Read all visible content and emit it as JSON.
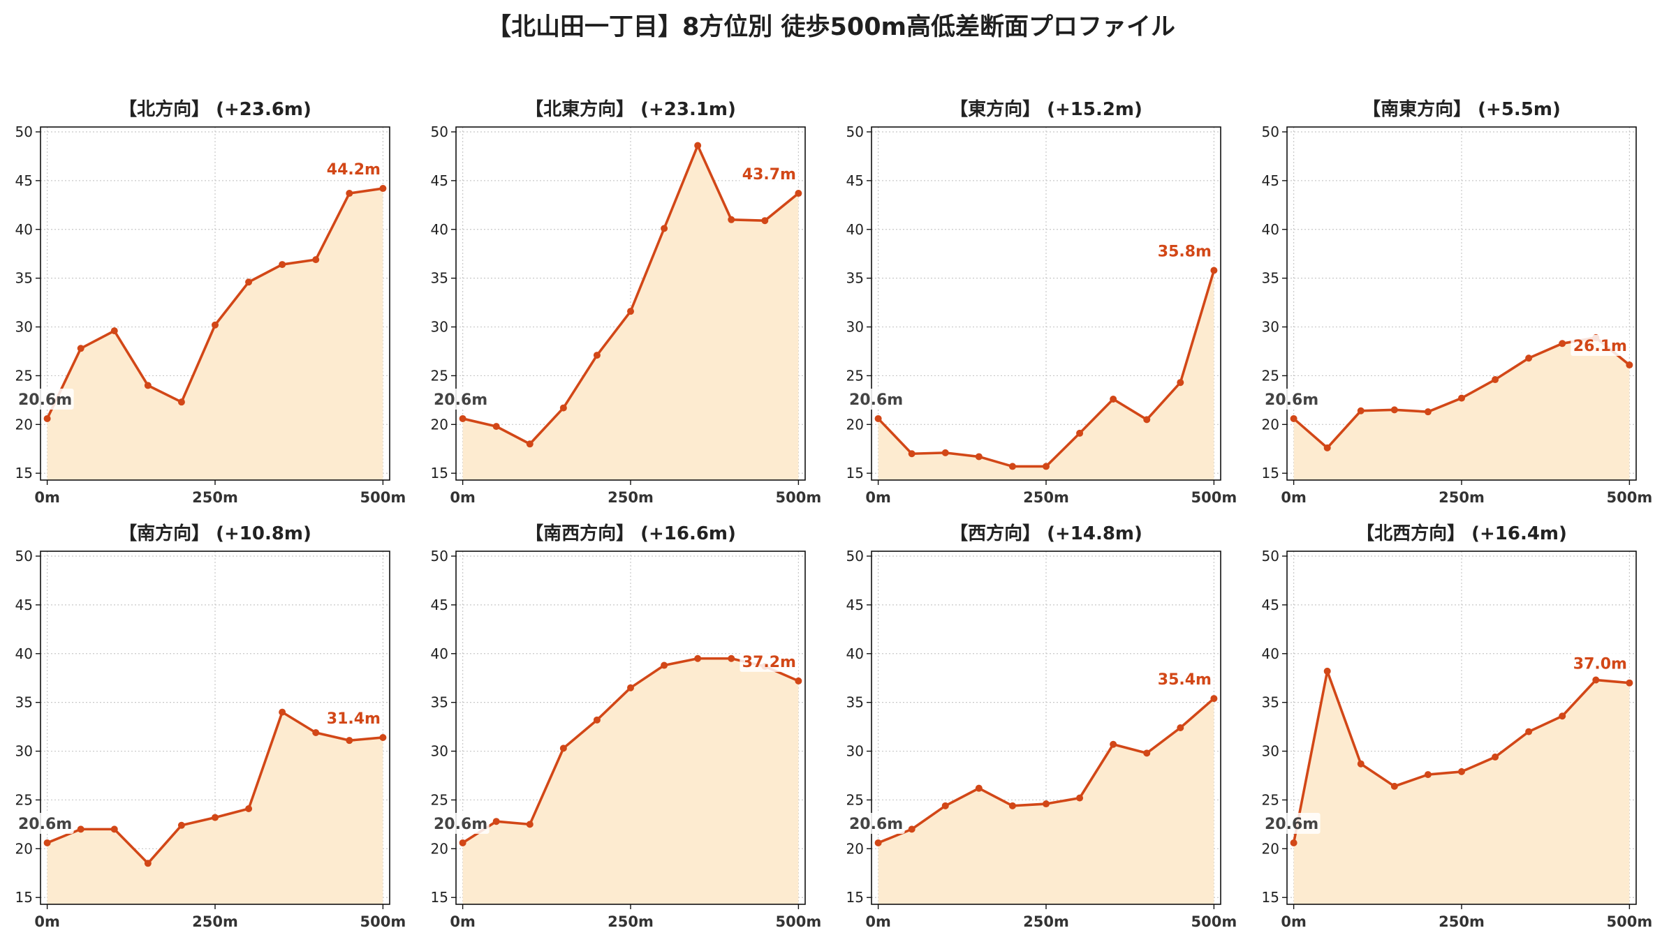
{
  "title": "【北山田一丁目】8方位別 徒歩500m高低差断面プロファイル",
  "colors": {
    "line": "#d24717",
    "fill": "#fdebd0",
    "start_label": "#444444",
    "end_label": "#d24717",
    "grid": "#c8c8c8"
  },
  "chart_data": [
    {
      "type": "area",
      "title": "【北方向】 (+23.6m)",
      "x": [
        0,
        50,
        100,
        150,
        200,
        250,
        300,
        350,
        400,
        450,
        500
      ],
      "y": [
        20.6,
        27.8,
        29.6,
        24.0,
        22.3,
        30.2,
        34.6,
        36.4,
        36.9,
        43.7,
        44.2
      ],
      "start_label": "20.6m",
      "end_label": "44.2m",
      "xticks": [
        "0m",
        "250m",
        "500m"
      ],
      "yticks": [
        15,
        20,
        25,
        30,
        35,
        40,
        45,
        50
      ],
      "xlim": [
        -10,
        510
      ],
      "ylim": [
        14.3,
        50.5
      ],
      "grid": true
    },
    {
      "type": "area",
      "title": "【北東方向】 (+23.1m)",
      "x": [
        0,
        50,
        100,
        150,
        200,
        250,
        300,
        350,
        400,
        450,
        500
      ],
      "y": [
        20.6,
        19.8,
        18.0,
        21.7,
        27.1,
        31.6,
        40.1,
        48.6,
        41.0,
        40.9,
        43.7
      ],
      "start_label": "20.6m",
      "end_label": "43.7m",
      "xticks": [
        "0m",
        "250m",
        "500m"
      ],
      "yticks": [
        15,
        20,
        25,
        30,
        35,
        40,
        45,
        50
      ],
      "xlim": [
        -10,
        510
      ],
      "ylim": [
        14.3,
        50.5
      ],
      "grid": true
    },
    {
      "type": "area",
      "title": "【東方向】 (+15.2m)",
      "x": [
        0,
        50,
        100,
        150,
        200,
        250,
        300,
        350,
        400,
        450,
        500
      ],
      "y": [
        20.6,
        17.0,
        17.1,
        16.7,
        15.7,
        15.7,
        19.1,
        22.6,
        20.5,
        24.3,
        35.8
      ],
      "start_label": "20.6m",
      "end_label": "35.8m",
      "xticks": [
        "0m",
        "250m",
        "500m"
      ],
      "yticks": [
        15,
        20,
        25,
        30,
        35,
        40,
        45,
        50
      ],
      "xlim": [
        -10,
        510
      ],
      "ylim": [
        14.3,
        50.5
      ],
      "grid": true
    },
    {
      "type": "area",
      "title": "【南東方向】 (+5.5m)",
      "x": [
        0,
        50,
        100,
        150,
        200,
        250,
        300,
        350,
        400,
        450,
        500
      ],
      "y": [
        20.6,
        17.6,
        21.4,
        21.5,
        21.3,
        22.7,
        24.6,
        26.8,
        28.3,
        28.9,
        26.1
      ],
      "start_label": "20.6m",
      "end_label": "26.1m",
      "xticks": [
        "0m",
        "250m",
        "500m"
      ],
      "yticks": [
        15,
        20,
        25,
        30,
        35,
        40,
        45,
        50
      ],
      "xlim": [
        -10,
        510
      ],
      "ylim": [
        14.3,
        50.5
      ],
      "grid": true
    },
    {
      "type": "area",
      "title": "【南方向】 (+10.8m)",
      "x": [
        0,
        50,
        100,
        150,
        200,
        250,
        300,
        350,
        400,
        450,
        500
      ],
      "y": [
        20.6,
        22.0,
        22.0,
        18.5,
        22.4,
        23.2,
        24.1,
        34.0,
        31.9,
        31.1,
        31.4
      ],
      "start_label": "20.6m",
      "end_label": "31.4m",
      "xticks": [
        "0m",
        "250m",
        "500m"
      ],
      "yticks": [
        15,
        20,
        25,
        30,
        35,
        40,
        45,
        50
      ],
      "xlim": [
        -10,
        510
      ],
      "ylim": [
        14.3,
        50.5
      ],
      "grid": true
    },
    {
      "type": "area",
      "title": "【南西方向】 (+16.6m)",
      "x": [
        0,
        50,
        100,
        150,
        200,
        250,
        300,
        350,
        400,
        450,
        500
      ],
      "y": [
        20.6,
        22.8,
        22.5,
        30.3,
        33.2,
        36.5,
        38.8,
        39.5,
        39.5,
        38.7,
        37.2
      ],
      "start_label": "20.6m",
      "end_label": "37.2m",
      "xticks": [
        "0m",
        "250m",
        "500m"
      ],
      "yticks": [
        15,
        20,
        25,
        30,
        35,
        40,
        45,
        50
      ],
      "xlim": [
        -10,
        510
      ],
      "ylim": [
        14.3,
        50.5
      ],
      "grid": true
    },
    {
      "type": "area",
      "title": "【西方向】 (+14.8m)",
      "x": [
        0,
        50,
        100,
        150,
        200,
        250,
        300,
        350,
        400,
        450,
        500
      ],
      "y": [
        20.6,
        22.0,
        24.4,
        26.2,
        24.4,
        24.6,
        25.2,
        30.7,
        29.8,
        32.4,
        35.4
      ],
      "start_label": "20.6m",
      "end_label": "35.4m",
      "xticks": [
        "0m",
        "250m",
        "500m"
      ],
      "yticks": [
        15,
        20,
        25,
        30,
        35,
        40,
        45,
        50
      ],
      "xlim": [
        -10,
        510
      ],
      "ylim": [
        14.3,
        50.5
      ],
      "grid": true
    },
    {
      "type": "area",
      "title": "【北西方向】 (+16.4m)",
      "x": [
        0,
        50,
        100,
        150,
        200,
        250,
        300,
        350,
        400,
        450,
        500
      ],
      "y": [
        20.6,
        38.2,
        28.7,
        26.4,
        27.6,
        27.9,
        29.4,
        32.0,
        33.6,
        37.3,
        37.0
      ],
      "start_label": "20.6m",
      "end_label": "37.0m",
      "xticks": [
        "0m",
        "250m",
        "500m"
      ],
      "yticks": [
        15,
        20,
        25,
        30,
        35,
        40,
        45,
        50
      ],
      "xlim": [
        -10,
        510
      ],
      "ylim": [
        14.3,
        50.5
      ],
      "grid": true
    }
  ]
}
